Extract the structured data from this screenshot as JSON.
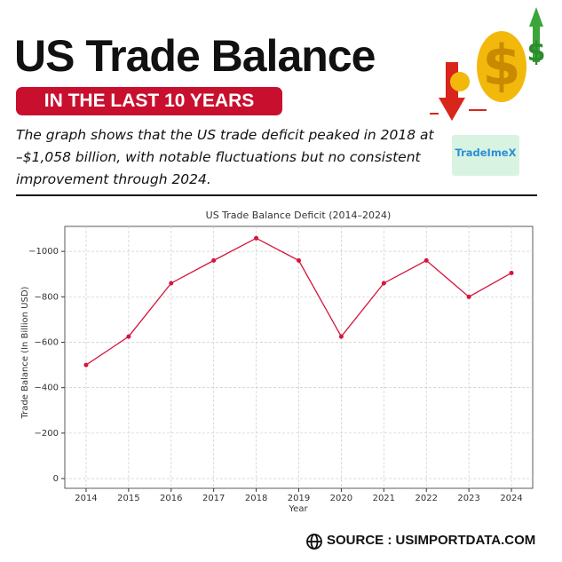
{
  "header": {
    "title": "US Trade Balance",
    "badge": "IN THE LAST 10 YEARS",
    "description": "The graph shows that the US trade deficit peaked in 2018 at –$1,058 billion, with notable fluctuations but no consistent improvement through 2024.",
    "logo": "TradeImeX"
  },
  "chart_data": {
    "type": "line",
    "title": "US Trade Balance Deficit (2014–2024)",
    "x_label": "Year",
    "y_label": "Trade Balance (In Billion USD)",
    "x": [
      2014,
      2015,
      2016,
      2017,
      2018,
      2019,
      2020,
      2021,
      2022,
      2023,
      2024
    ],
    "values": [
      -500,
      -625,
      -860,
      -960,
      -1058,
      -960,
      -625,
      -860,
      -960,
      -800,
      -905
    ],
    "color": "#d6143c",
    "xlim": [
      2013.5,
      2024.5
    ],
    "xticks": [
      2014,
      2015,
      2016,
      2017,
      2018,
      2019,
      2020,
      2021,
      2022,
      2023,
      2024
    ],
    "ylim": [
      43,
      -1110
    ],
    "yticks": [
      {
        "value": -1000,
        "label": "−1000"
      },
      {
        "value": -800,
        "label": "−800"
      },
      {
        "value": -600,
        "label": "−600"
      },
      {
        "value": -400,
        "label": "−400"
      },
      {
        "value": -200,
        "label": "−200"
      },
      0
    ],
    "grid": true
  },
  "footer": {
    "source": "SOURCE : USIMPORTDATA.COM"
  }
}
